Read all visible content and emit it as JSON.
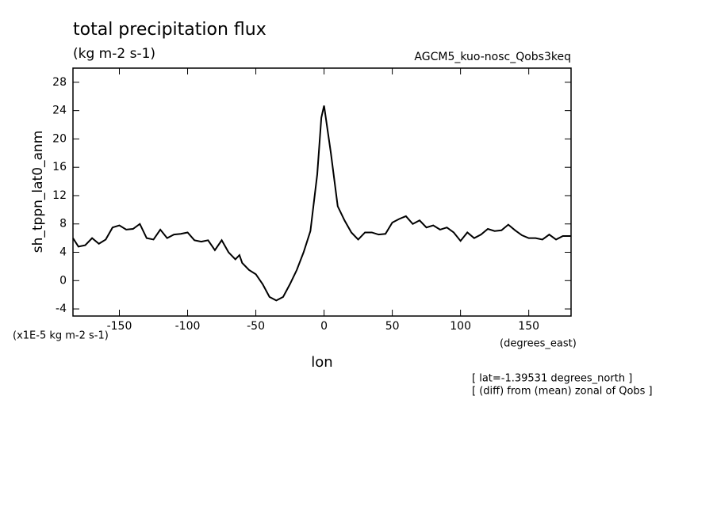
{
  "chart_data": {
    "type": "line",
    "title": "total precipitation flux",
    "subtitle": "(kg m-2 s-1)",
    "dataset_label": "AGCM5_kuo-nosc_Qobs3keq",
    "y_label": "sh_tppn_lat0_anm",
    "y_units": "(x1E-5 kg m-2 s-1)",
    "x_label": "lon",
    "x_units": "(degrees_east)",
    "notes": [
      "[ lat=-1.39531 degrees_north ]",
      "[ (diff) from (mean) zonal of Qobs ]"
    ],
    "x": [
      -184,
      -180,
      -175,
      -170,
      -165,
      -160,
      -155,
      -150,
      -145,
      -140,
      -135,
      -130,
      -125,
      -120,
      -115,
      -110,
      -105,
      -100,
      -95,
      -90,
      -85,
      -80,
      -75,
      -70,
      -65,
      -62,
      -60,
      -55,
      -50,
      -45,
      -40,
      -35,
      -30,
      -25,
      -20,
      -15,
      -10,
      -5,
      -2,
      0,
      5,
      10,
      15,
      20,
      25,
      30,
      35,
      40,
      45,
      50,
      55,
      60,
      65,
      70,
      75,
      80,
      85,
      90,
      95,
      100,
      105,
      110,
      115,
      120,
      125,
      130,
      135,
      140,
      145,
      150,
      155,
      160,
      165,
      170,
      175,
      181
    ],
    "series": [
      {
        "name": "sh_tppn_lat0_anm",
        "color": "#000000",
        "values": [
          6,
          4.8,
          5,
          6,
          5.2,
          5.8,
          7.5,
          7.8,
          7.2,
          7.3,
          8,
          6,
          5.8,
          7.2,
          6,
          6.5,
          6.6,
          6.8,
          5.7,
          5.5,
          5.7,
          4.3,
          5.7,
          4,
          3,
          3.6,
          2.5,
          1.5,
          0.9,
          -0.5,
          -2.3,
          -2.8,
          -2.3,
          -0.5,
          1.5,
          4,
          7,
          15,
          23,
          24.7,
          18,
          10.5,
          8.5,
          6.8,
          5.8,
          6.8,
          6.8,
          6.5,
          6.6,
          8.2,
          8.7,
          9.1,
          8,
          8.5,
          7.5,
          7.8,
          7.2,
          7.5,
          6.8,
          5.6,
          6.8,
          6,
          6.5,
          7.3,
          7,
          7.1,
          7.9,
          7.1,
          6.4,
          6,
          6,
          5.8,
          6.5,
          5.8,
          6.3,
          6.3
        ]
      }
    ],
    "xlim": [
      -184,
      181
    ],
    "ylim": [
      -5,
      30
    ],
    "xticks": [
      -150,
      -100,
      -50,
      0,
      50,
      100,
      150
    ],
    "yticks": [
      -4,
      0,
      4,
      8,
      12,
      16,
      20,
      24,
      28
    ]
  }
}
